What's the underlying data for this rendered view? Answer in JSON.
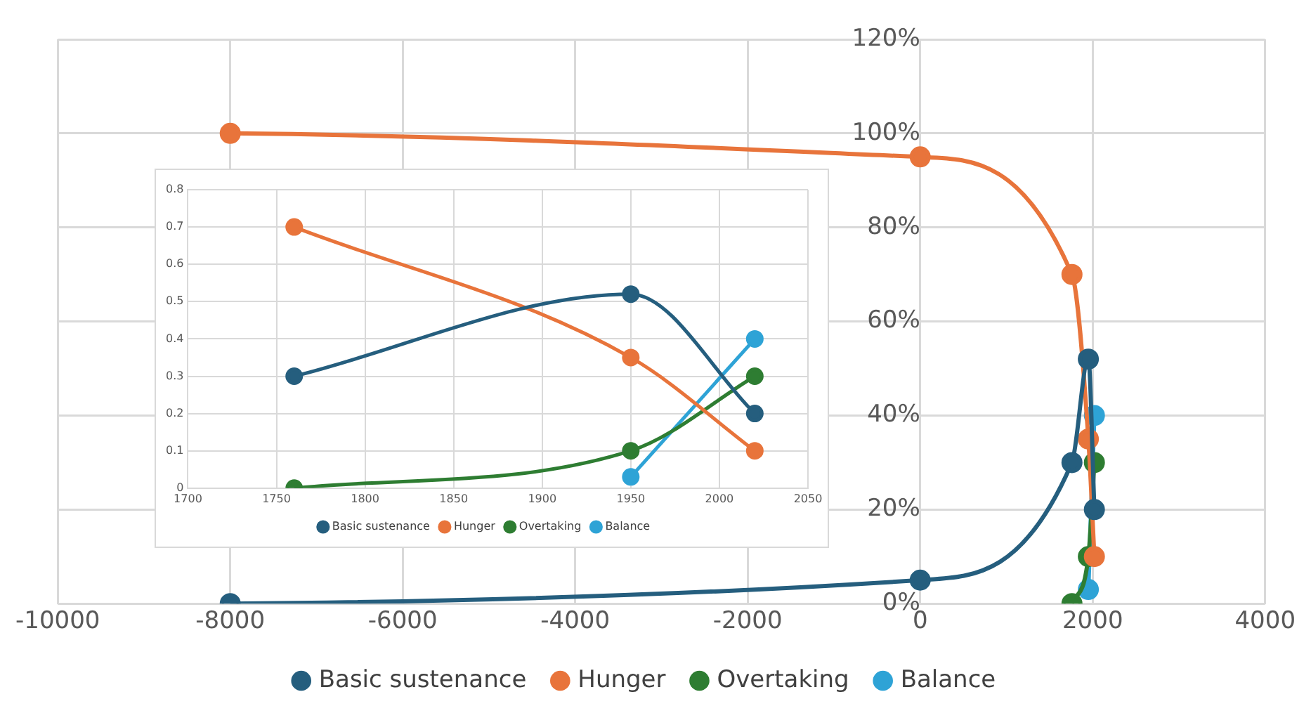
{
  "chart_data": [
    {
      "type": "line",
      "series": [
        {
          "name": "Basic sustenance",
          "color": "#255e7e",
          "x": [
            -8000,
            0,
            1760,
            1950,
            2020
          ],
          "values": [
            0,
            5,
            30,
            52,
            20
          ]
        },
        {
          "name": "Hunger",
          "color": "#e8743b",
          "x": [
            -8000,
            0,
            1760,
            1950,
            2020
          ],
          "values": [
            100,
            95,
            70,
            35,
            10
          ]
        },
        {
          "name": "Overtaking",
          "color": "#2e7d32",
          "x": [
            1760,
            1950,
            2020
          ],
          "values": [
            0,
            10,
            30
          ]
        },
        {
          "name": "Balance",
          "color": "#2ea3d6",
          "x": [
            1950,
            2020
          ],
          "values": [
            3,
            40
          ]
        }
      ],
      "xlim": [
        -10000,
        4000
      ],
      "xticks": [
        -10000,
        -8000,
        -6000,
        -4000,
        -2000,
        0,
        2000,
        4000
      ],
      "ylim": [
        0,
        120
      ],
      "yticks": [
        {
          "value": 0,
          "label": "0%"
        },
        {
          "value": 20,
          "label": "20%"
        },
        {
          "value": 40,
          "label": "40%"
        },
        {
          "value": 60,
          "label": "60%"
        },
        {
          "value": 80,
          "label": "80%"
        },
        {
          "value": 100,
          "label": "100%"
        },
        {
          "value": 120,
          "label": "120%"
        }
      ],
      "grid": true,
      "legend": "bottom",
      "marker": "circle"
    },
    {
      "type": "line",
      "series": [
        {
          "name": "Basic sustenance",
          "color": "#255e7e",
          "x": [
            1760,
            1950,
            2020
          ],
          "values": [
            0.3,
            0.52,
            0.2
          ]
        },
        {
          "name": "Hunger",
          "color": "#e8743b",
          "x": [
            1760,
            1950,
            2020
          ],
          "values": [
            0.7,
            0.35,
            0.1
          ]
        },
        {
          "name": "Overtaking",
          "color": "#2e7d32",
          "x": [
            1760,
            1950,
            2020
          ],
          "values": [
            0,
            0.1,
            0.3
          ]
        },
        {
          "name": "Balance",
          "color": "#2ea3d6",
          "x": [
            1950,
            2020
          ],
          "values": [
            0.03,
            0.4
          ]
        }
      ],
      "xlim": [
        1700,
        2050
      ],
      "xticks": [
        1700,
        1750,
        1800,
        1850,
        1900,
        1950,
        2000,
        2050
      ],
      "ylim": [
        0,
        0.8
      ],
      "yticks": [
        0,
        0.1,
        0.2,
        0.3,
        0.4,
        0.5,
        0.6,
        0.7,
        0.8
      ],
      "grid": true,
      "legend": "bottom",
      "marker": "circle"
    }
  ]
}
